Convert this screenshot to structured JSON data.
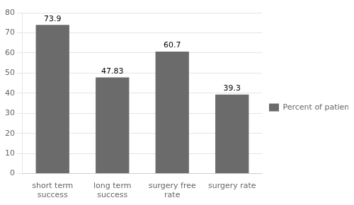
{
  "chart_data": {
    "type": "bar",
    "categories": [
      "short term\nsuccess",
      "long term\nsuccess",
      "surgery free\nrate",
      "surgery rate"
    ],
    "series": [
      {
        "name": "Percent of patients",
        "color": "#6b6b6b",
        "values": [
          73.9,
          47.83,
          60.7,
          39.3
        ]
      }
    ],
    "ylim": [
      0,
      80
    ],
    "yticks": [
      0,
      10,
      20,
      30,
      40,
      50,
      60,
      70,
      80
    ],
    "grid": true,
    "legend": "right",
    "data_labels": true
  }
}
